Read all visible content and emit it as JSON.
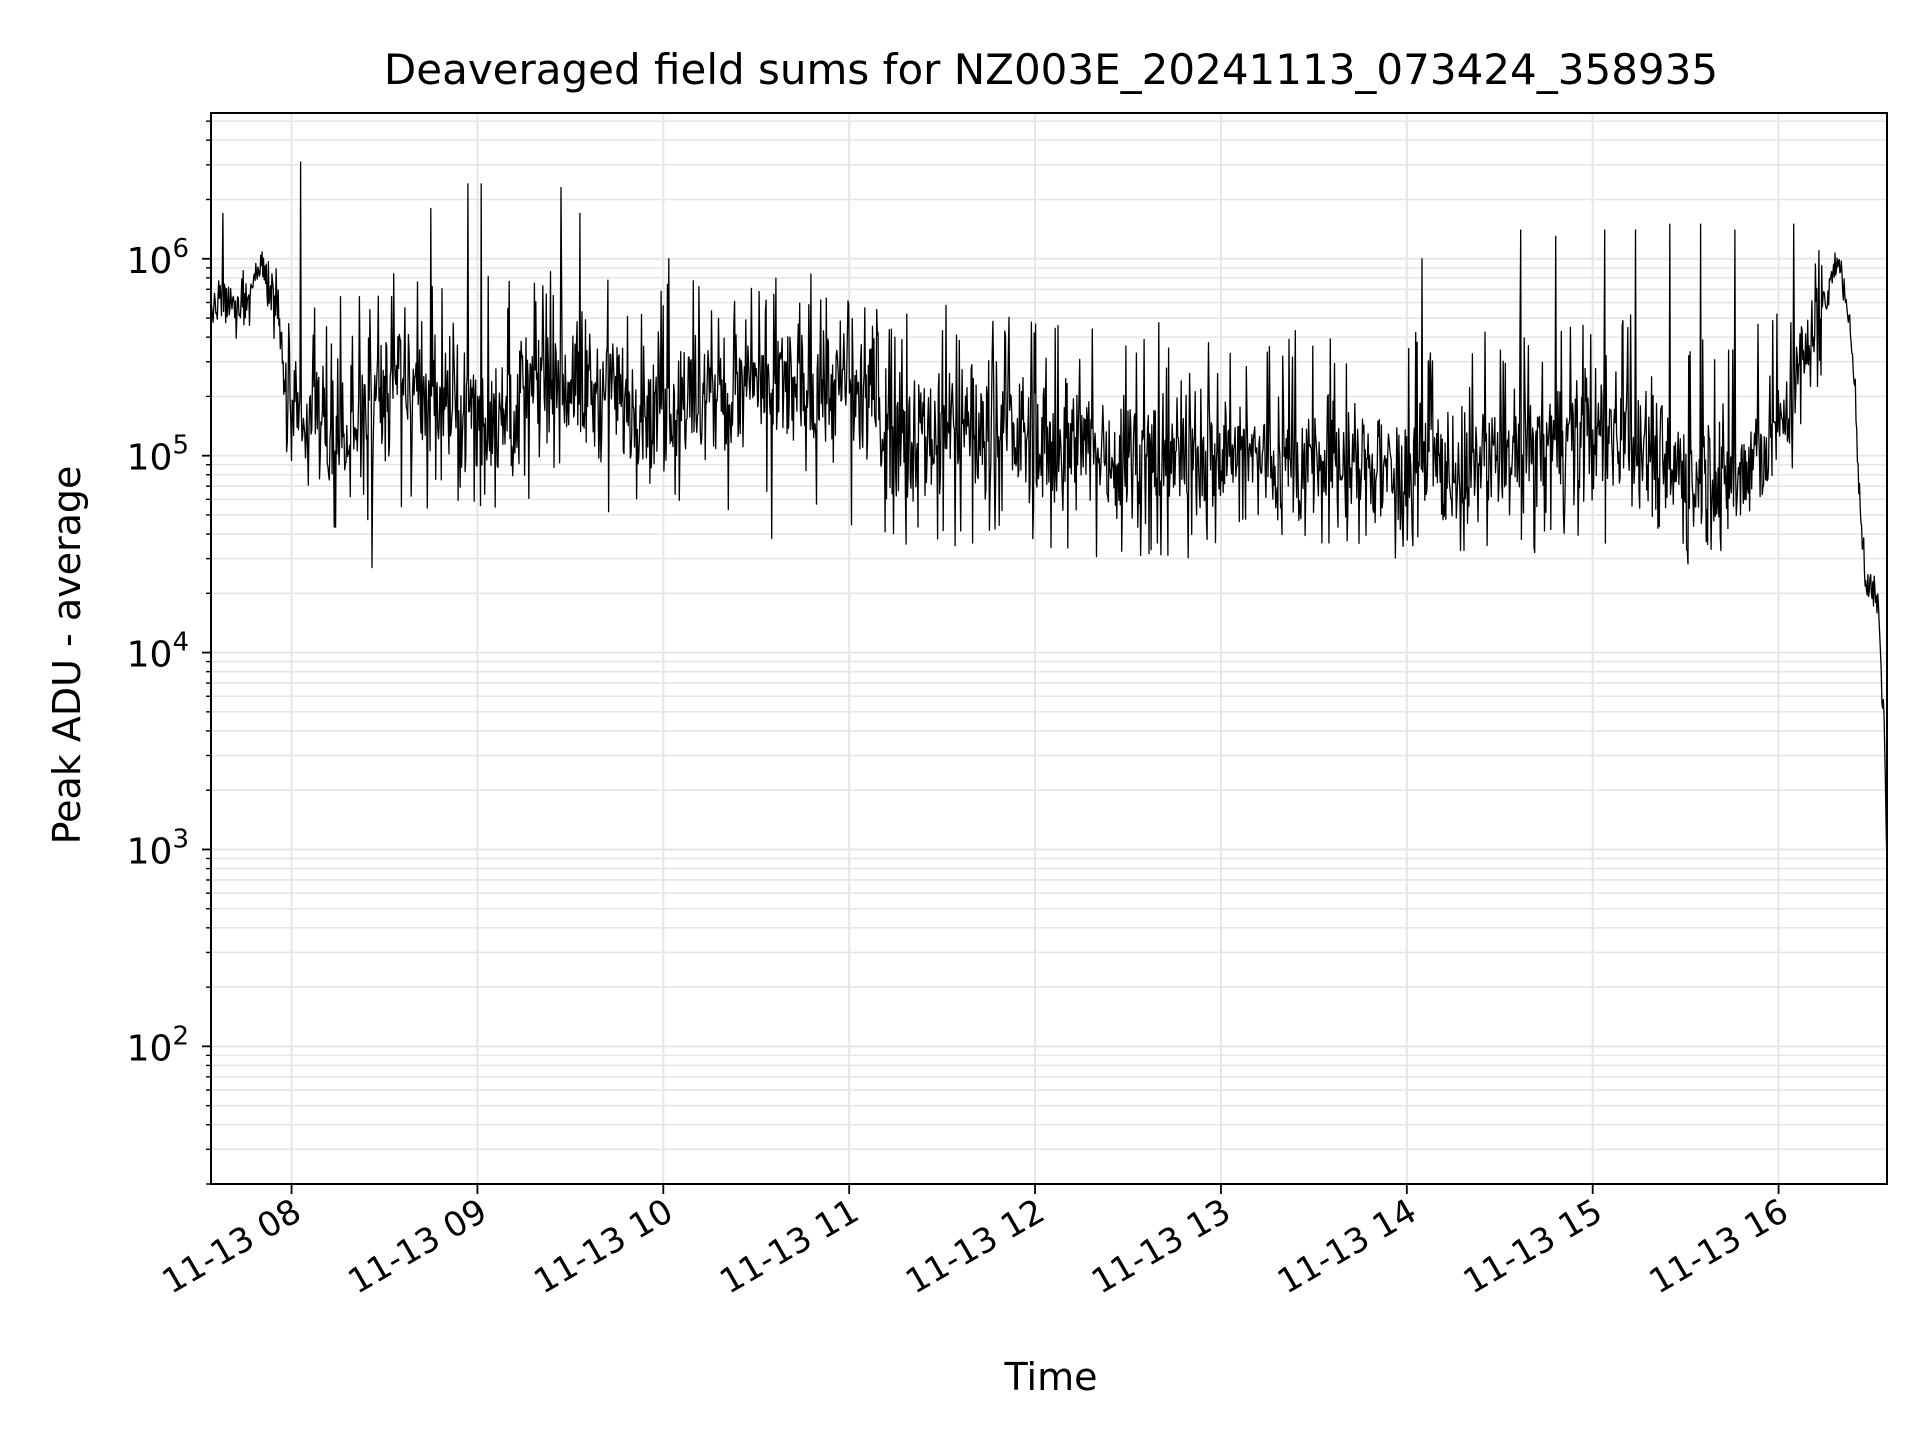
{
  "chart_data": {
    "type": "line",
    "title": "Deaveraged field sums for NZ003E_20241113_073424_358935",
    "xlabel": "Time",
    "ylabel": "Peak ADU - average",
    "x_axis": "time",
    "x_ticks": [
      "11-13 08",
      "11-13 09",
      "11-13 10",
      "11-13 11",
      "11-13 12",
      "11-13 13",
      "11-13 14",
      "11-13 15",
      "11-13 16"
    ],
    "x_tick_values": [
      "2024-11-13 08:00",
      "2024-11-13 09:00",
      "2024-11-13 10:00",
      "2024-11-13 11:00",
      "2024-11-13 12:00",
      "2024-11-13 13:00",
      "2024-11-13 14:00",
      "2024-11-13 15:00",
      "2024-11-13 16:00"
    ],
    "xlim": [
      "2024-11-13 07:34",
      "2024-11-13 16:35"
    ],
    "y_scale": "log",
    "ylim": [
      20,
      5500000
    ],
    "y_ticks": [
      {
        "value": 100,
        "base": "10",
        "exp": "2"
      },
      {
        "value": 1000,
        "base": "10",
        "exp": "3"
      },
      {
        "value": 10000,
        "base": "10",
        "exp": "4"
      },
      {
        "value": 100000,
        "base": "10",
        "exp": "5"
      },
      {
        "value": 1000000,
        "base": "10",
        "exp": "6"
      }
    ],
    "grid": true,
    "line_color": "#000000",
    "grid_color": "#e6e6e6",
    "series": [
      {
        "x": [
          "2024-11-13 07:34",
          "2024-11-13 07:38",
          "2024-11-13 07:42",
          "2024-11-13 07:46",
          "2024-11-13 07:50",
          "2024-11-13 07:54",
          "2024-11-13 07:58",
          "2024-11-13 08:00",
          "2024-11-13 08:04",
          "2024-11-13 08:08",
          "2024-11-13 08:12",
          "2024-11-13 08:20",
          "2024-11-13 08:27",
          "2024-11-13 08:35",
          "2024-11-13 08:45",
          "2024-11-13 08:55",
          "2024-11-13 09:05",
          "2024-11-13 09:15",
          "2024-11-13 09:28",
          "2024-11-13 09:40",
          "2024-11-13 10:00",
          "2024-11-13 10:20",
          "2024-11-13 10:35",
          "2024-11-13 11:00",
          "2024-11-13 11:10",
          "2024-11-13 11:20",
          "2024-11-13 11:40",
          "2024-11-13 12:00",
          "2024-11-13 12:30",
          "2024-11-13 13:00",
          "2024-11-13 13:30",
          "2024-11-13 14:00",
          "2024-11-13 14:30",
          "2024-11-13 14:55",
          "2024-11-13 15:10",
          "2024-11-13 15:30",
          "2024-11-13 15:45",
          "2024-11-13 15:55",
          "2024-11-13 16:05",
          "2024-11-13 16:10",
          "2024-11-13 16:15",
          "2024-11-13 16:18",
          "2024-11-13 16:20",
          "2024-11-13 16:22",
          "2024-11-13 16:24",
          "2024-11-13 16:26",
          "2024-11-13 16:28",
          "2024-11-13 16:30",
          "2024-11-13 16:32",
          "2024-11-13 16:34",
          "2024-11-13 16:35"
        ],
        "y": [
          500000,
          600000,
          550000,
          650000,
          950000,
          700000,
          250000,
          150000,
          130000,
          180000,
          100000,
          150000,
          200000,
          250000,
          200000,
          150000,
          160000,
          200000,
          250000,
          200000,
          170000,
          200000,
          220000,
          220000,
          160000,
          130000,
          140000,
          120000,
          100000,
          100000,
          90000,
          85000,
          90000,
          120000,
          140000,
          80000,
          75000,
          100000,
          200000,
          400000,
          700000,
          900000,
          850000,
          600000,
          300000,
          70000,
          22000,
          22000,
          18000,
          5000,
          800
        ],
        "baseline_min": [
          320000,
          400000,
          380000,
          450000,
          600000,
          300000,
          130000,
          80000,
          70000,
          80000,
          50000,
          60000,
          65000,
          70000,
          65000,
          60000,
          60000,
          65000,
          70000,
          65000,
          60000,
          62000,
          65000,
          60000,
          50000,
          45000,
          45000,
          42000,
          40000,
          40000,
          38000,
          36000,
          38000,
          45000,
          50000,
          42000,
          40000,
          50000,
          90000,
          180000,
          350000,
          550000,
          550000,
          450000,
          250000,
          55000,
          17000,
          17000,
          14000,
          4000,
          700
        ],
        "baseline_max": [
          700000,
          800000,
          700000,
          850000,
          1000000,
          900000,
          600000,
          450000,
          400000,
          500000,
          350000,
          450000,
          500000,
          600000,
          550000,
          500000,
          480000,
          500000,
          550000,
          500000,
          450000,
          500000,
          520000,
          500000,
          400000,
          350000,
          350000,
          300000,
          300000,
          280000,
          270000,
          260000,
          270000,
          350000,
          400000,
          300000,
          280000,
          300000,
          450000,
          700000,
          950000,
          1000000,
          950000,
          750000,
          400000,
          90000,
          28000,
          28000,
          24000,
          7000,
          1000
        ]
      }
    ],
    "spikes": [
      {
        "x": "2024-11-13 07:38",
        "y": 1700000
      },
      {
        "x": "2024-11-13 08:03",
        "y": 3100000
      },
      {
        "x": "2024-11-13 08:26",
        "y": 27000
      },
      {
        "x": "2024-11-13 08:45",
        "y": 1800000
      },
      {
        "x": "2024-11-13 08:57",
        "y": 2400000
      },
      {
        "x": "2024-11-13 09:01",
        "y": 2400000
      },
      {
        "x": "2024-11-13 09:27",
        "y": 2300000
      },
      {
        "x": "2024-11-13 09:33",
        "y": 1700000
      },
      {
        "x": "2024-11-13 10:02",
        "y": 1000000
      },
      {
        "x": "2024-11-13 10:35",
        "y": 38000
      },
      {
        "x": "2024-11-13 11:40",
        "y": 36000
      },
      {
        "x": "2024-11-13 13:35",
        "y": 36000
      },
      {
        "x": "2024-11-13 14:05",
        "y": 1000000
      },
      {
        "x": "2024-11-13 14:26",
        "y": 35000
      },
      {
        "x": "2024-11-13 14:37",
        "y": 1400000
      },
      {
        "x": "2024-11-13 14:48",
        "y": 1300000
      },
      {
        "x": "2024-11-13 15:04",
        "y": 1400000
      },
      {
        "x": "2024-11-13 15:14",
        "y": 1400000
      },
      {
        "x": "2024-11-13 15:25",
        "y": 1500000
      },
      {
        "x": "2024-11-13 15:35",
        "y": 1500000
      },
      {
        "x": "2024-11-13 15:46",
        "y": 1400000
      },
      {
        "x": "2024-11-13 16:05",
        "y": 1500000
      }
    ]
  }
}
